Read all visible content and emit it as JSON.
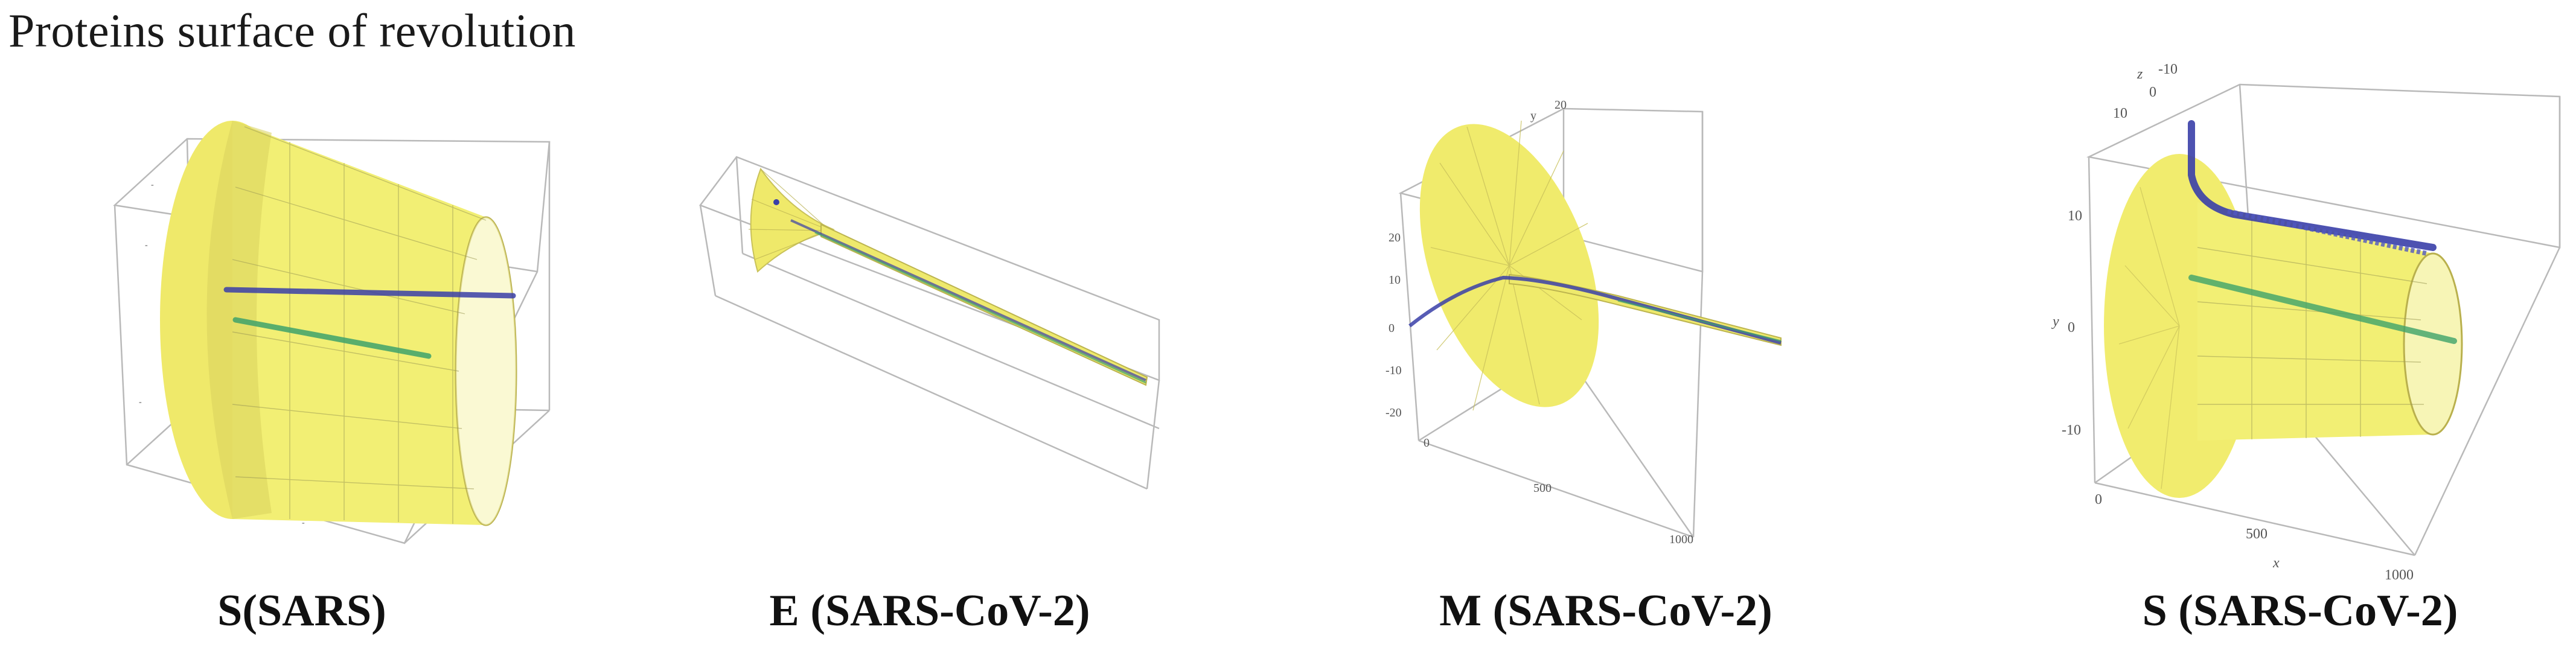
{
  "figure": {
    "title": "Proteins surface of revolution",
    "surface_color": "#f3f17a",
    "curve_color_primary": "#3a3fa8",
    "curve_color_secondary": "#3fa36b"
  },
  "panels": [
    {
      "caption": "S(SARS)"
    },
    {
      "caption": "E (SARS-CoV-2)"
    },
    {
      "caption": "M (SARS-CoV-2)"
    },
    {
      "caption": "S (SARS-CoV-2)",
      "ticks": {
        "z_top": "-10",
        "z_mid1": "10",
        "z_mid2": "0",
        "y_1": "10",
        "y_2": "0",
        "y_3": "-10",
        "y_label": "y",
        "z_label": "z",
        "x_1": "0",
        "x_2": "500",
        "x_3": "1000",
        "x_label": "x"
      }
    }
  ],
  "m_ticks": {
    "t1": "20",
    "t2": "10",
    "t3": "0",
    "t4": "-10",
    "t5": "-20",
    "b1": "0",
    "b2": "500",
    "b3": "1000",
    "y_top": "y",
    "z_top": "20"
  }
}
